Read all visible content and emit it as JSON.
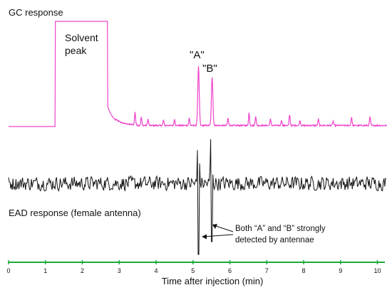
{
  "chart_data": {
    "type": "line",
    "xlabel": "Time after injection (min)",
    "xlim": [
      0,
      10.4
    ],
    "x_ticks": [
      "0",
      "1",
      "2",
      "3",
      "4",
      "5",
      "6",
      "7",
      "8",
      "9",
      "10"
    ],
    "series": [
      {
        "name": "GC response",
        "color": "#ee44cc",
        "baseline": 0.0,
        "solvent_plateau": {
          "start": 1.27,
          "end": 2.68,
          "height": 1.0
        },
        "peaks": [
          {
            "x": 3.43,
            "height": 0.12
          },
          {
            "x": 3.6,
            "height": 0.08
          },
          {
            "x": 3.78,
            "height": 0.06
          },
          {
            "x": 4.2,
            "height": 0.05
          },
          {
            "x": 4.5,
            "height": 0.06
          },
          {
            "x": 4.9,
            "height": 0.07
          },
          {
            "x": 5.15,
            "height": 0.56
          },
          {
            "x": 5.52,
            "height": 0.46
          },
          {
            "x": 5.95,
            "height": 0.07
          },
          {
            "x": 6.52,
            "height": 0.12
          },
          {
            "x": 6.7,
            "height": 0.09
          },
          {
            "x": 7.1,
            "height": 0.06
          },
          {
            "x": 7.4,
            "height": 0.05
          },
          {
            "x": 7.62,
            "height": 0.1
          },
          {
            "x": 7.9,
            "height": 0.05
          },
          {
            "x": 8.4,
            "height": 0.06
          },
          {
            "x": 8.8,
            "height": 0.04
          },
          {
            "x": 9.3,
            "height": 0.08
          },
          {
            "x": 9.8,
            "height": 0.08
          }
        ]
      },
      {
        "name": "EAD response (female antenna)",
        "color": "#111111",
        "noise_amplitude": 0.12,
        "deflections": [
          {
            "x": 5.15,
            "min": -1.0,
            "max": 0.7
          },
          {
            "x": 5.5,
            "min": -0.82,
            "max": 0.62
          }
        ]
      }
    ],
    "annotations": [
      {
        "id": "gc-label",
        "text": "GC response"
      },
      {
        "id": "solvent-line-1",
        "text": "Solvent"
      },
      {
        "id": "solvent-line-2",
        "text": "peak"
      },
      {
        "id": "peak-a",
        "text": "\"A\""
      },
      {
        "id": "peak-b",
        "text": "\"B\""
      },
      {
        "id": "ead-label",
        "text": "EAD response (female antenna)"
      },
      {
        "id": "note-line-1",
        "text": "Both “A” and “B” strongly"
      },
      {
        "id": "note-line-2",
        "text": "detected by antennae"
      }
    ]
  }
}
